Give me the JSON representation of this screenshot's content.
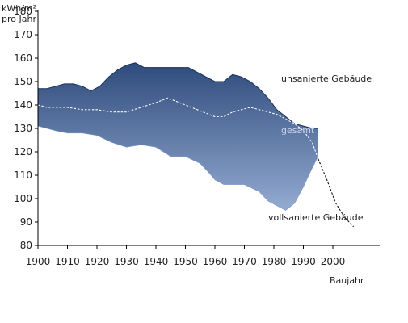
{
  "chart_data": {
    "type": "area",
    "ylabel_line1": "kWh/m²",
    "ylabel_line2": "pro Jahr",
    "xlabel": "Baujahr",
    "xlim": [
      1900,
      2007
    ],
    "ylim": [
      80,
      180
    ],
    "x_ticks": [
      1900,
      1910,
      1920,
      1930,
      1940,
      1950,
      1960,
      1970,
      1980,
      1990,
      2000
    ],
    "y_ticks": [
      80,
      90,
      100,
      110,
      120,
      130,
      140,
      150,
      160,
      170,
      180
    ],
    "gridlines": false,
    "band_colors": {
      "top": "#2e4b7c",
      "bottom": "#94abd1"
    },
    "annotations": {
      "upper": "unsanierte Gebäude",
      "middle": "gesamt",
      "lower": "vollsanierte Gebäude"
    },
    "series": [
      {
        "name": "unsanierte Gebäude",
        "x": [
          1900,
          1903,
          1906,
          1909,
          1912,
          1915,
          1918,
          1921,
          1924,
          1927,
          1930,
          1933,
          1936,
          1939,
          1942,
          1945,
          1948,
          1951,
          1954,
          1957,
          1960,
          1963,
          1966,
          1969,
          1972,
          1975,
          1978,
          1981,
          1984,
          1987,
          1990,
          1993,
          1995
        ],
        "values": [
          147,
          147,
          148,
          149,
          149,
          148,
          146,
          148,
          152,
          155,
          157,
          158,
          156,
          156,
          156,
          156,
          156,
          156,
          154,
          152,
          150,
          150,
          153,
          152,
          150,
          147,
          143,
          138,
          135,
          132,
          131,
          130,
          130
        ]
      },
      {
        "name": "gesamt",
        "x": [
          1900,
          1903,
          1906,
          1910,
          1915,
          1920,
          1925,
          1930,
          1935,
          1940,
          1944,
          1948,
          1952,
          1956,
          1960,
          1963,
          1966,
          1969,
          1972,
          1975,
          1978,
          1981,
          1984,
          1987,
          1990,
          1993,
          1995,
          1998,
          2001,
          2004,
          2007
        ],
        "values": [
          140,
          139,
          139,
          139,
          138,
          138,
          137,
          137,
          139,
          141,
          143,
          141,
          139,
          137,
          135,
          135,
          137,
          138,
          139,
          138,
          137,
          136,
          134,
          132,
          129,
          124,
          117,
          108,
          98,
          92,
          88
        ]
      },
      {
        "name": "vollsanierte Gebäude",
        "x": [
          1900,
          1903,
          1906,
          1910,
          1915,
          1920,
          1925,
          1930,
          1935,
          1940,
          1945,
          1950,
          1955,
          1958,
          1960,
          1963,
          1966,
          1970,
          1975,
          1978,
          1981,
          1984,
          1987,
          1990,
          1993,
          1995
        ],
        "values": [
          131,
          130,
          129,
          128,
          128,
          127,
          124,
          122,
          123,
          122,
          118,
          118,
          115,
          111,
          108,
          106,
          106,
          106,
          103,
          99,
          97,
          95,
          98,
          105,
          113,
          118
        ]
      }
    ]
  }
}
